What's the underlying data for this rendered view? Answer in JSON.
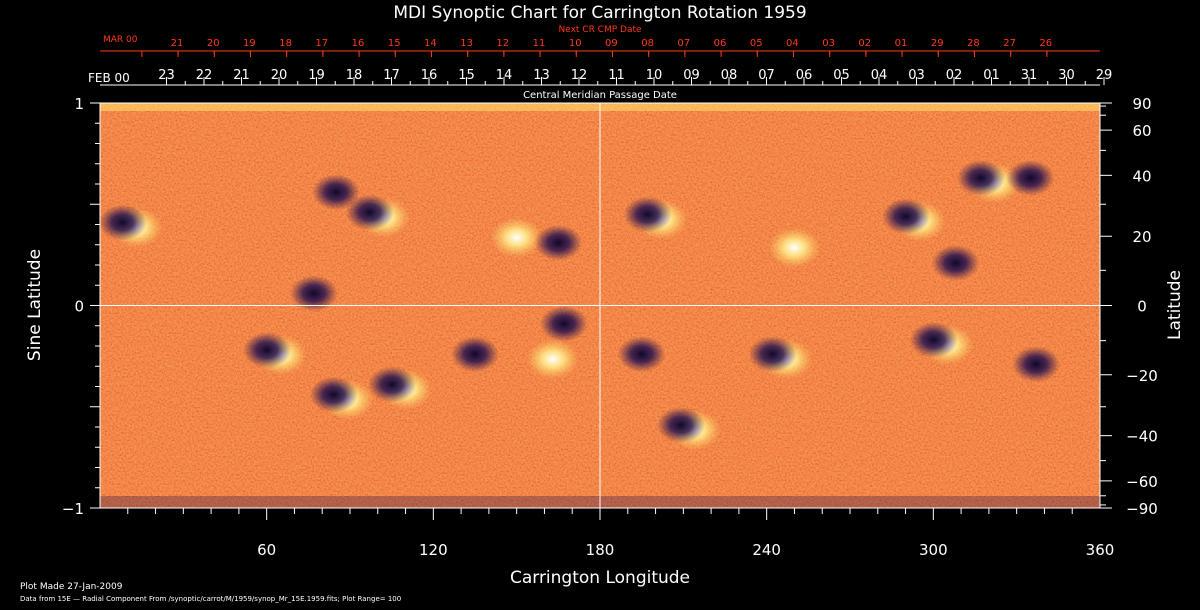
{
  "chart_data": {
    "type": "heatmap",
    "title": "MDI Synoptic Chart for Carrington Rotation 1959",
    "xlabel": "Carrington Longitude",
    "ylabel_left": "Sine Latitude",
    "ylabel_right": "Latitude",
    "xlim": [
      0,
      360
    ],
    "ylim": [
      -1,
      1
    ],
    "x_ticks": [
      60,
      120,
      180,
      240,
      300,
      360
    ],
    "y_left_ticks": [
      {
        "value": 1,
        "label": "1"
      },
      {
        "value": 0,
        "label": "0"
      },
      {
        "value": -1,
        "label": "−1"
      }
    ],
    "y_right_ticks": [
      {
        "deg": 90,
        "label": "90"
      },
      {
        "deg": 60,
        "label": "60"
      },
      {
        "deg": 40,
        "label": "40"
      },
      {
        "deg": 20,
        "label": "20"
      },
      {
        "deg": 0,
        "label": "0"
      },
      {
        "deg": -20,
        "label": "−20"
      },
      {
        "deg": -40,
        "label": "−40"
      },
      {
        "deg": -60,
        "label": "−60"
      },
      {
        "deg": -90,
        "label": "−90"
      }
    ],
    "top_axis_1": {
      "title": "Next CR CMP Date",
      "month_label": "MAR 00",
      "labels": [
        "21",
        "20",
        "19",
        "18",
        "17",
        "16",
        "15",
        "14",
        "13",
        "12",
        "11",
        "10",
        "09",
        "08",
        "07",
        "06",
        "05",
        "04",
        "03",
        "02",
        "01",
        "29",
        "28",
        "27",
        "26"
      ]
    },
    "top_axis_2": {
      "title": "Central Meridian Passage Date",
      "month_label": "FEB 00",
      "labels": [
        "23",
        "22",
        "21",
        "20",
        "19",
        "18",
        "17",
        "16",
        "15",
        "14",
        "13",
        "12",
        "11",
        "10",
        "09",
        "08",
        "07",
        "06",
        "05",
        "04",
        "03",
        "02",
        "01",
        "31",
        "30",
        "29"
      ]
    },
    "magnetic_features": [
      {
        "lon": 11,
        "sinlat": 0.4,
        "polarity": "mixed"
      },
      {
        "lon": 77,
        "sinlat": 0.05,
        "polarity": "negative"
      },
      {
        "lon": 85,
        "sinlat": 0.55,
        "polarity": "negative"
      },
      {
        "lon": 100,
        "sinlat": 0.45,
        "polarity": "mixed"
      },
      {
        "lon": 150,
        "sinlat": 0.35,
        "polarity": "positive"
      },
      {
        "lon": 165,
        "sinlat": 0.3,
        "polarity": "negative"
      },
      {
        "lon": 200,
        "sinlat": 0.44,
        "polarity": "mixed"
      },
      {
        "lon": 250,
        "sinlat": 0.3,
        "polarity": "positive"
      },
      {
        "lon": 293,
        "sinlat": 0.43,
        "polarity": "mixed"
      },
      {
        "lon": 308,
        "sinlat": 0.2,
        "polarity": "negative"
      },
      {
        "lon": 320,
        "sinlat": 0.62,
        "polarity": "mixed"
      },
      {
        "lon": 335,
        "sinlat": 0.62,
        "polarity": "negative"
      },
      {
        "lon": 63,
        "sinlat": -0.23,
        "polarity": "mixed"
      },
      {
        "lon": 87,
        "sinlat": -0.45,
        "polarity": "mixed"
      },
      {
        "lon": 108,
        "sinlat": -0.4,
        "polarity": "mixed"
      },
      {
        "lon": 135,
        "sinlat": -0.25,
        "polarity": "negative"
      },
      {
        "lon": 163,
        "sinlat": -0.25,
        "polarity": "positive"
      },
      {
        "lon": 167,
        "sinlat": -0.1,
        "polarity": "negative"
      },
      {
        "lon": 195,
        "sinlat": -0.25,
        "polarity": "negative"
      },
      {
        "lon": 212,
        "sinlat": -0.6,
        "polarity": "mixed"
      },
      {
        "lon": 245,
        "sinlat": -0.25,
        "polarity": "mixed"
      },
      {
        "lon": 303,
        "sinlat": -0.18,
        "polarity": "mixed"
      },
      {
        "lon": 337,
        "sinlat": -0.3,
        "polarity": "negative"
      }
    ]
  },
  "footer": {
    "line1": "Plot Made 27-Jan-2009",
    "line2": "Data from 15E — Radial Component From /synoptic/carrot/M/1959/synop_Mr_15E.1959.fits; Plot Range=  100"
  },
  "colors": {
    "background": "#000000",
    "axis": "#ffffff",
    "top_axis_1": "#ff3a1a",
    "map_base": "#e8451c"
  }
}
